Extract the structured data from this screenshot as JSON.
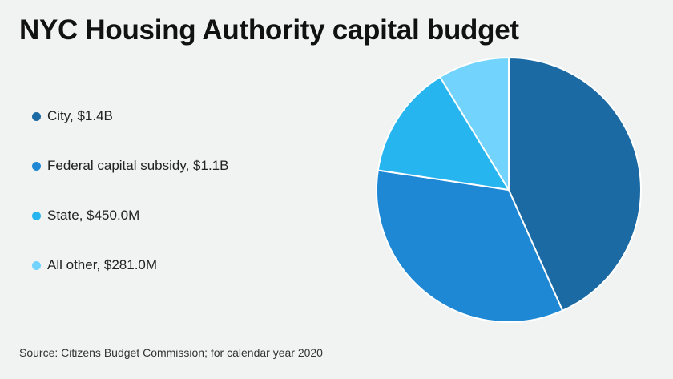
{
  "title": "NYC Housing Authority capital budget",
  "source": "Source: Citizens Budget Commission; for calendar year 2020",
  "chart_data": {
    "type": "pie",
    "title": "NYC Housing Authority capital budget",
    "legend_position": "left",
    "slices": [
      {
        "label": "City, $1.4B",
        "value": 1400000000,
        "color": "#1c6aa3"
      },
      {
        "label": "Federal capital subsidy, $1.1B",
        "value": 1100000000,
        "color": "#1e88d4"
      },
      {
        "label": "State, $450.0M",
        "value": 450000000,
        "color": "#27b5f0"
      },
      {
        "label": "All other, $281.0M",
        "value": 281000000,
        "color": "#72d4fd"
      }
    ]
  }
}
